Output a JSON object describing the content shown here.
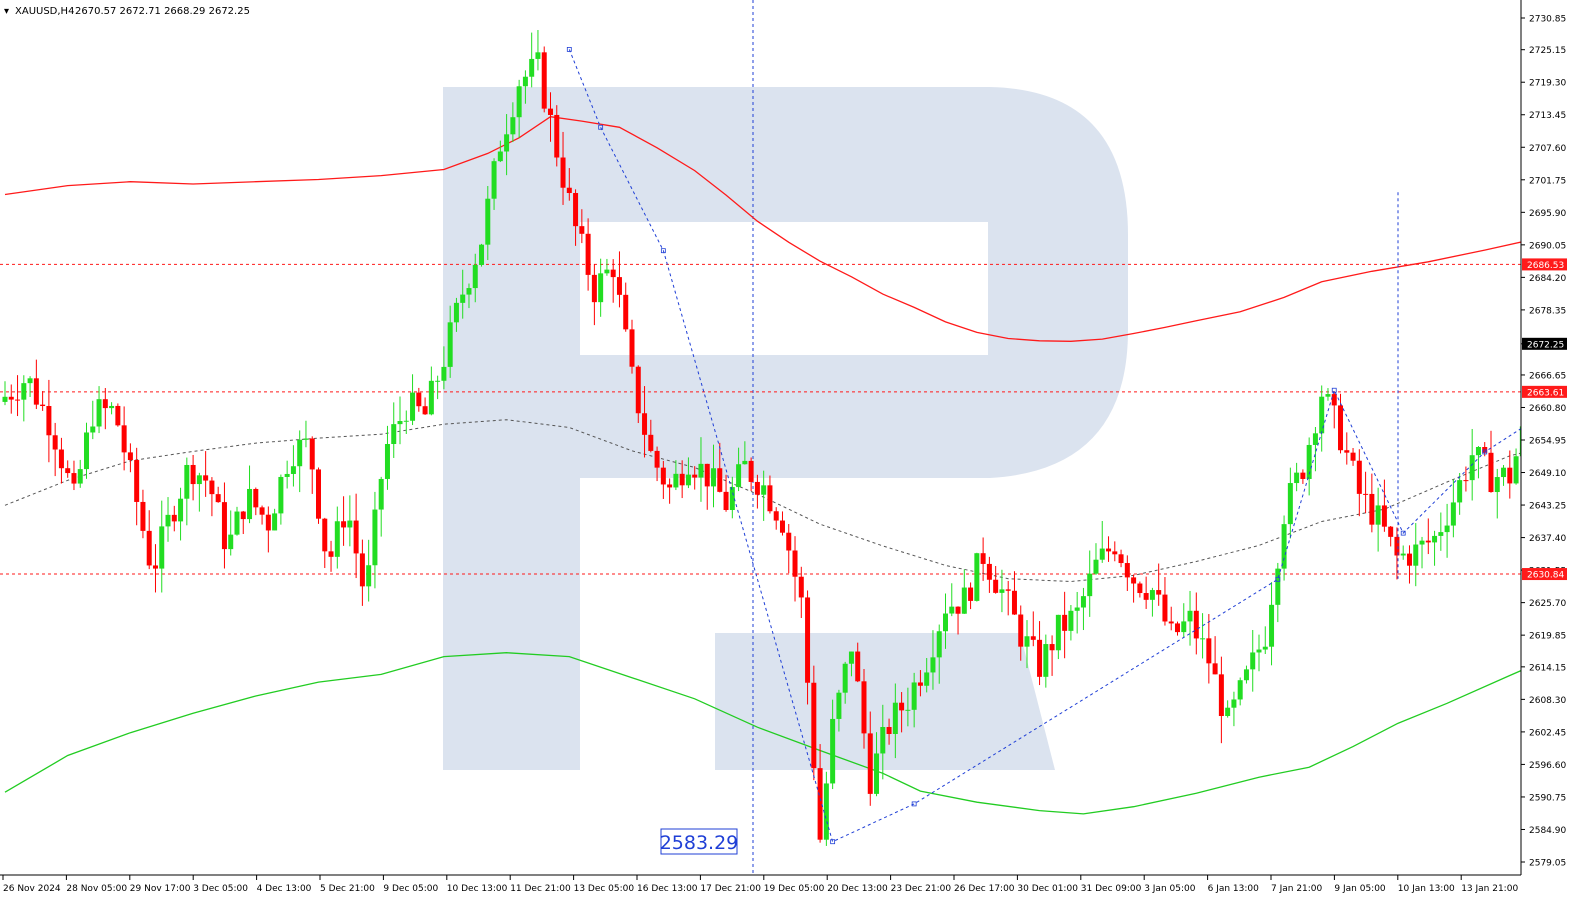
{
  "header": {
    "symbol": "XAUUSD,H4",
    "ohlc": "2670.57 2672.71 2668.29 2672.25"
  },
  "chart_data": {
    "type": "candlestick",
    "title": "XAUUSD,H4",
    "ylim": [
      2579.05,
      2733.0
    ],
    "y_ticks": [
      "2730.85",
      "2725.15",
      "2719.30",
      "2713.45",
      "2707.60",
      "2701.75",
      "2695.90",
      "2690.05",
      "2684.20",
      "2678.35",
      "2672.25",
      "2666.65",
      "2660.80",
      "2654.95",
      "2649.10",
      "2643.25",
      "2637.40",
      "2631.55",
      "2625.70",
      "2619.85",
      "2614.15",
      "2608.30",
      "2602.45",
      "2596.60",
      "2590.75",
      "2584.90",
      "2579.05"
    ],
    "x_ticks": [
      "26 Nov 2024",
      "28 Nov 05:00",
      "29 Nov 17:00",
      "3 Dec 05:00",
      "4 Dec 13:00",
      "5 Dec 21:00",
      "9 Dec 05:00",
      "10 Dec 13:00",
      "11 Dec 21:00",
      "13 Dec 05:00",
      "16 Dec 13:00",
      "17 Dec 21:00",
      "19 Dec 05:00",
      "20 Dec 13:00",
      "23 Dec 21:00",
      "26 Dec 17:00",
      "30 Dec 01:00",
      "31 Dec 09:00",
      "3 Jan 05:00",
      "6 Jan 13:00",
      "7 Jan 21:00",
      "9 Jan 05:00",
      "10 Jan 13:00",
      "13 Jan 21:00"
    ],
    "price_labels": [
      {
        "value": 2686.53,
        "label": "2686.53",
        "color": "#ff1a1a"
      },
      {
        "value": 2672.25,
        "label": "2672.25",
        "color": "#000000"
      },
      {
        "value": 2663.61,
        "label": "2663.61",
        "color": "#ff1a1a"
      },
      {
        "value": 2630.84,
        "label": "2630.84",
        "color": "#ff1a1a"
      }
    ],
    "horizontal_levels": [
      2686.53,
      2663.61,
      2630.84
    ],
    "low_annotation": "2583.29",
    "path": [
      [
        0.0,
        2661.8
      ],
      [
        0.45,
        2666.2
      ],
      [
        0.85,
        2657.4
      ],
      [
        1.2,
        2644.2
      ],
      [
        1.5,
        2659.9
      ],
      [
        1.85,
        2660.2
      ],
      [
        2.15,
        2646.3
      ],
      [
        2.45,
        2631.5
      ],
      [
        2.75,
        2641.7
      ],
      [
        3.05,
        2650.5
      ],
      [
        3.35,
        2647.4
      ],
      [
        3.65,
        2635.4
      ],
      [
        3.95,
        2644.8
      ],
      [
        4.3,
        2640.3
      ],
      [
        4.65,
        2653.0
      ],
      [
        4.95,
        2654.1
      ],
      [
        5.25,
        2632.5
      ],
      [
        5.55,
        2643.3
      ],
      [
        5.85,
        2626.3
      ],
      [
        6.15,
        2652.7
      ],
      [
        6.5,
        2661.1
      ],
      [
        6.8,
        2659.4
      ],
      [
        7.1,
        2669.7
      ],
      [
        7.4,
        2681.6
      ],
      [
        7.7,
        2691.1
      ],
      [
        8.0,
        2708.5
      ],
      [
        8.3,
        2719.5
      ],
      [
        8.6,
        2722.0
      ],
      [
        8.9,
        2707.1
      ],
      [
        9.2,
        2692.9
      ],
      [
        9.5,
        2682.0
      ],
      [
        9.8,
        2686.4
      ],
      [
        10.1,
        2665.8
      ],
      [
        10.4,
        2652.3
      ],
      [
        10.7,
        2646.0
      ],
      [
        11.0,
        2651.7
      ],
      [
        11.3,
        2648.6
      ],
      [
        11.6,
        2643.5
      ],
      [
        11.9,
        2650.1
      ],
      [
        12.2,
        2646.6
      ],
      [
        12.5,
        2640.6
      ],
      [
        12.8,
        2625.6
      ],
      [
        13.1,
        2583.3
      ],
      [
        13.3,
        2603.1
      ],
      [
        13.6,
        2618.2
      ],
      [
        13.9,
        2594.2
      ],
      [
        14.2,
        2603.7
      ],
      [
        14.5,
        2608.4
      ],
      [
        14.8,
        2615.6
      ],
      [
        15.1,
        2625.3
      ],
      [
        15.4,
        2626.2
      ],
      [
        15.7,
        2634.3
      ],
      [
        16.0,
        2627.7
      ],
      [
        16.3,
        2620.0
      ],
      [
        16.6,
        2614.3
      ],
      [
        16.9,
        2620.8
      ],
      [
        17.2,
        2623.6
      ],
      [
        17.5,
        2632.3
      ],
      [
        17.8,
        2636.5
      ],
      [
        18.1,
        2630.1
      ],
      [
        18.4,
        2627.9
      ],
      [
        18.7,
        2619.5
      ],
      [
        19.0,
        2622.5
      ],
      [
        19.3,
        2615.4
      ],
      [
        19.6,
        2603.9
      ],
      [
        19.9,
        2611.9
      ],
      [
        20.2,
        2620.2
      ],
      [
        20.5,
        2642.1
      ],
      [
        20.8,
        2650.2
      ],
      [
        21.1,
        2663.6
      ],
      [
        21.4,
        2655.7
      ],
      [
        21.7,
        2645.2
      ],
      [
        22.0,
        2640.6
      ],
      [
        22.3,
        2633.7
      ],
      [
        22.6,
        2634.9
      ],
      [
        22.9,
        2637.3
      ],
      [
        23.2,
        2644.3
      ],
      [
        23.5,
        2652.4
      ],
      [
        23.8,
        2648.5
      ],
      [
        24.1,
        2648.4
      ],
      [
        24.4,
        2659.5
      ],
      [
        24.7,
        2657.1
      ],
      [
        25.0,
        2667.7
      ],
      [
        25.3,
        2672.7
      ],
      [
        25.6,
        2677.8
      ],
      [
        25.9,
        2689.2
      ],
      [
        26.2,
        2680.6
      ],
      [
        26.5,
        2677.9
      ],
      [
        26.8,
        2659.0
      ],
      [
        27.1,
        2664.3
      ],
      [
        27.3,
        2671.7
      ]
    ],
    "red_ma": [
      [
        0.0,
        2699.1
      ],
      [
        1.0,
        2700.7
      ],
      [
        2.0,
        2701.4
      ],
      [
        3.0,
        2701.0
      ],
      [
        4.0,
        2701.4
      ],
      [
        5.0,
        2701.8
      ],
      [
        6.0,
        2702.5
      ],
      [
        7.0,
        2703.6
      ],
      [
        7.7,
        2706.5
      ],
      [
        8.2,
        2709.3
      ],
      [
        8.7,
        2713.1
      ],
      [
        9.2,
        2712.3
      ],
      [
        9.8,
        2711.2
      ],
      [
        10.4,
        2707.5
      ],
      [
        11.0,
        2703.4
      ],
      [
        11.5,
        2699.0
      ],
      [
        12.0,
        2694.3
      ],
      [
        12.5,
        2690.5
      ],
      [
        13.0,
        2687.1
      ],
      [
        13.5,
        2684.3
      ],
      [
        14.0,
        2681.2
      ],
      [
        14.5,
        2678.8
      ],
      [
        15.0,
        2676.2
      ],
      [
        15.5,
        2674.3
      ],
      [
        16.0,
        2673.2
      ],
      [
        16.5,
        2672.8
      ],
      [
        17.0,
        2672.7
      ],
      [
        17.5,
        2673.1
      ],
      [
        18.0,
        2674.1
      ],
      [
        18.5,
        2675.2
      ],
      [
        19.0,
        2676.4
      ],
      [
        19.7,
        2678.0
      ],
      [
        20.4,
        2680.6
      ],
      [
        21.0,
        2683.4
      ],
      [
        21.8,
        2685.3
      ],
      [
        22.7,
        2687.0
      ],
      [
        23.6,
        2689.1
      ],
      [
        24.4,
        2691.1
      ],
      [
        25.0,
        2693.7
      ],
      [
        25.6,
        2696.7
      ],
      [
        26.2,
        2700.8
      ],
      [
        26.7,
        2702.3
      ],
      [
        27.2,
        2703.2
      ]
    ],
    "green_ma": [
      [
        0.0,
        2591.6
      ],
      [
        1.0,
        2598.2
      ],
      [
        2.0,
        2602.3
      ],
      [
        3.0,
        2605.8
      ],
      [
        4.0,
        2608.9
      ],
      [
        5.0,
        2611.4
      ],
      [
        6.0,
        2612.8
      ],
      [
        7.0,
        2616.0
      ],
      [
        8.0,
        2616.7
      ],
      [
        9.0,
        2616.0
      ],
      [
        10.0,
        2612.2
      ],
      [
        11.0,
        2608.4
      ],
      [
        12.0,
        2603.3
      ],
      [
        13.0,
        2599.1
      ],
      [
        14.0,
        2595.0
      ],
      [
        14.6,
        2591.8
      ],
      [
        15.5,
        2589.8
      ],
      [
        16.5,
        2588.3
      ],
      [
        17.2,
        2587.7
      ],
      [
        18.0,
        2589.0
      ],
      [
        19.0,
        2591.4
      ],
      [
        20.0,
        2594.3
      ],
      [
        20.8,
        2596.1
      ],
      [
        21.5,
        2599.8
      ],
      [
        22.2,
        2603.9
      ],
      [
        23.0,
        2607.6
      ],
      [
        24.0,
        2612.6
      ],
      [
        25.0,
        2617.5
      ],
      [
        26.0,
        2621.8
      ],
      [
        26.6,
        2624.0
      ],
      [
        27.2,
        2626.4
      ]
    ],
    "gray_ma": [
      [
        0.0,
        2643.2
      ],
      [
        1.0,
        2647.7
      ],
      [
        2.0,
        2651.2
      ],
      [
        3.0,
        2652.9
      ],
      [
        4.0,
        2654.4
      ],
      [
        5.0,
        2655.3
      ],
      [
        6.0,
        2656.0
      ],
      [
        7.0,
        2657.8
      ],
      [
        8.0,
        2658.6
      ],
      [
        9.0,
        2657.2
      ],
      [
        10.0,
        2653.0
      ],
      [
        11.0,
        2650.0
      ],
      [
        12.0,
        2645.2
      ],
      [
        13.0,
        2639.8
      ],
      [
        14.0,
        2635.9
      ],
      [
        15.0,
        2632.4
      ],
      [
        16.0,
        2630.0
      ],
      [
        17.0,
        2629.5
      ],
      [
        18.0,
        2630.6
      ],
      [
        19.0,
        2633.1
      ],
      [
        20.0,
        2636.0
      ],
      [
        21.0,
        2640.3
      ],
      [
        22.0,
        2642.5
      ],
      [
        23.0,
        2647.4
      ],
      [
        24.0,
        2652.1
      ],
      [
        25.0,
        2654.8
      ],
      [
        26.0,
        2659.8
      ],
      [
        27.0,
        2662.6
      ]
    ],
    "forecast": [
      [
        9.0,
        2725.2
      ],
      [
        9.5,
        2711.2
      ],
      [
        10.5,
        2689.0
      ],
      [
        13.2,
        2582.7
      ],
      [
        14.5,
        2589.5
      ],
      [
        20.3,
        2629.9
      ],
      [
        21.2,
        2663.9
      ],
      [
        22.3,
        2638.2
      ],
      [
        23.6,
        2652.8
      ],
      [
        24.4,
        2658.6
      ],
      [
        25.2,
        2667.4
      ],
      [
        26.4,
        2679.0
      ],
      [
        26.1,
        2663.6
      ],
      [
        26.9,
        2659.4
      ],
      [
        27.1,
        2658.7
      ],
      [
        27.6,
        2670.3
      ],
      [
        27.9,
        2686.5
      ],
      [
        28.2,
        2663.6
      ]
    ]
  }
}
